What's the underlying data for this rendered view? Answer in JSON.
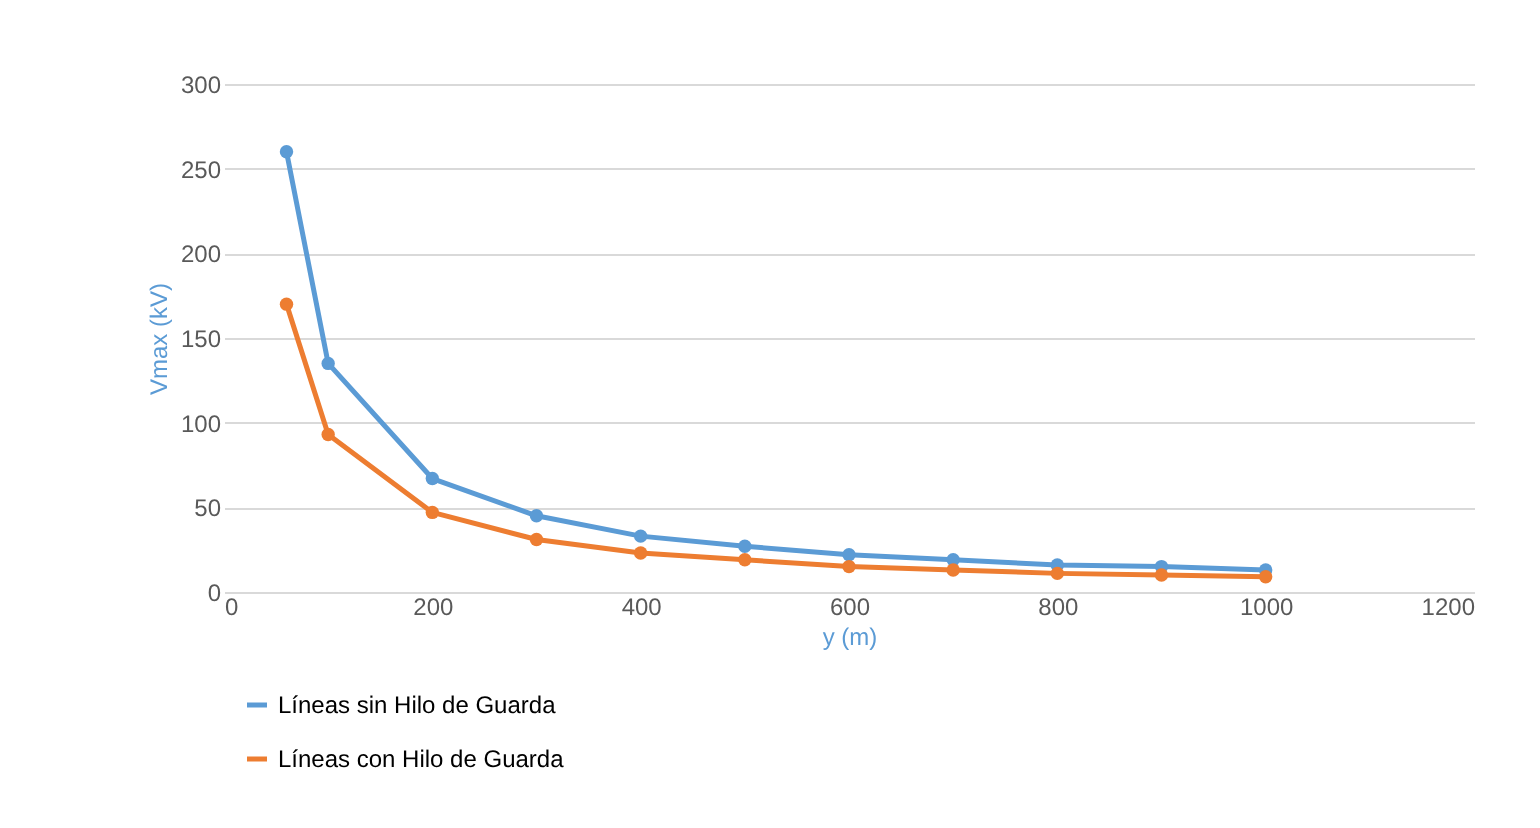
{
  "chart_data": {
    "type": "line",
    "xlabel": "y (m)",
    "ylabel": "Vmax (kV)",
    "x": [
      60,
      100,
      200,
      300,
      400,
      500,
      600,
      700,
      800,
      900,
      1000
    ],
    "series": [
      {
        "name": "Líneas sin Hilo de Guarda",
        "color": "#5b9bd5",
        "values": [
          260,
          135,
          67,
          45,
          33,
          27,
          22,
          19,
          16,
          15,
          13
        ]
      },
      {
        "name": "Líneas con Hilo de Guarda",
        "color": "#ed7d31",
        "values": [
          170,
          93,
          47,
          31,
          23,
          19,
          15,
          13,
          11,
          10,
          9
        ]
      }
    ],
    "xlim": [
      0,
      1200
    ],
    "xticks": [
      0,
      200,
      400,
      600,
      800,
      1000,
      1200
    ],
    "ylim": [
      0,
      300
    ],
    "yticks": [
      0,
      50,
      100,
      150,
      200,
      250,
      300
    ],
    "grid": "y",
    "legend": "bottom",
    "marker": "circle",
    "line_style": "solid"
  }
}
